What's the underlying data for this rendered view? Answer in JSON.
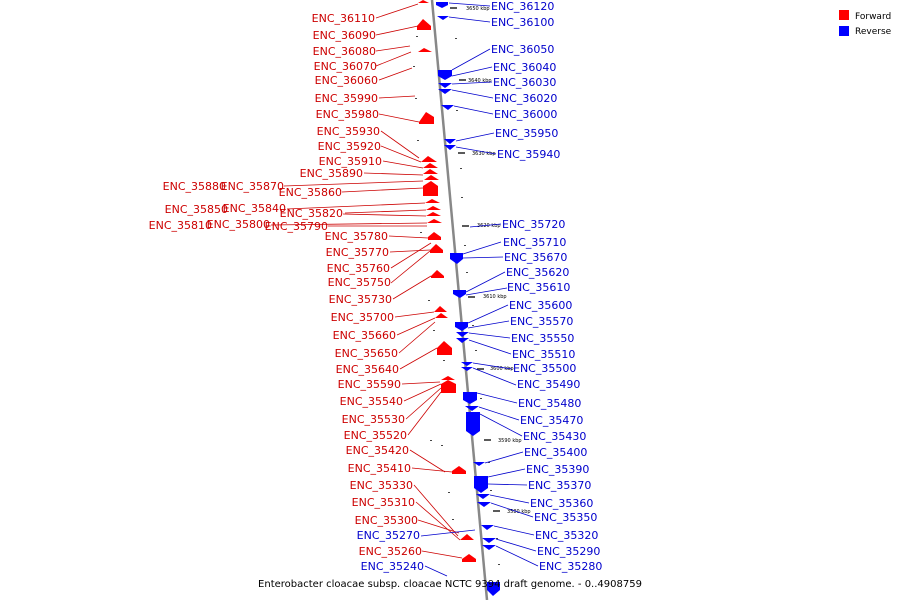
{
  "caption": "Enterobacter cloacae subsp. cloacae NCTC 9394 draft genome. - 0..4908759",
  "legend": [
    {
      "label": "Forward",
      "color": "#ff0000"
    },
    {
      "label": "Reverse",
      "color": "#0000ff"
    }
  ],
  "colors": {
    "forward": "#ff0000",
    "reverse": "#0000ff",
    "forward_label": "#cc0000",
    "reverse_label": "#0000cc",
    "axis": "#888888"
  },
  "scale_ticks": [
    "3650 kbp",
    "3640 kbp",
    "3630 kbp",
    "3620 kbp",
    "3610 kbp",
    "3600 kbp",
    "3590 kbp",
    "3580 kbp"
  ],
  "forward_genes": [
    "ENC_36110",
    "ENC_36090",
    "ENC_36080",
    "ENC_36070",
    "ENC_36060",
    "ENC_35990",
    "ENC_35980",
    "ENC_35930",
    "ENC_35920",
    "ENC_35910",
    "ENC_35890",
    "ENC_35880",
    "ENC_35870",
    "ENC_35860",
    "ENC_35850",
    "ENC_35840",
    "ENC_35820",
    "ENC_35810",
    "ENC_35800",
    "ENC_35790",
    "ENC_35780",
    "ENC_35770",
    "ENC_35760",
    "ENC_35750",
    "ENC_35730",
    "ENC_35700",
    "ENC_35660",
    "ENC_35650",
    "ENC_35640",
    "ENC_35590",
    "ENC_35540",
    "ENC_35530",
    "ENC_35520",
    "ENC_35420",
    "ENC_35410",
    "ENC_35330",
    "ENC_35310",
    "ENC_35300",
    "ENC_35260"
  ],
  "reverse_genes": [
    "ENC_36120",
    "ENC_36100",
    "ENC_36050",
    "ENC_36040",
    "ENC_36030",
    "ENC_36020",
    "ENC_36000",
    "ENC_35950",
    "ENC_35940",
    "ENC_35720",
    "ENC_35710",
    "ENC_35670",
    "ENC_35620",
    "ENC_35610",
    "ENC_35600",
    "ENC_35570",
    "ENC_35550",
    "ENC_35510",
    "ENC_35500",
    "ENC_35490",
    "ENC_35480",
    "ENC_35470",
    "ENC_35430",
    "ENC_35400",
    "ENC_35390",
    "ENC_35370",
    "ENC_35360",
    "ENC_35350",
    "ENC_35320",
    "ENC_35290",
    "ENC_35280",
    "ENC_35270",
    "ENC_35240"
  ]
}
